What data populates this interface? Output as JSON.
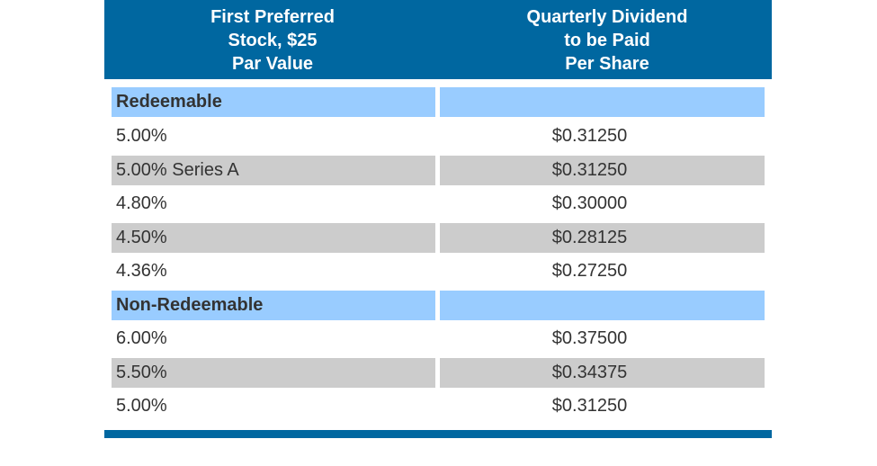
{
  "header": {
    "columns": [
      [
        "First Preferred",
        "Stock, $25",
        "Par Value"
      ],
      [
        "Quarterly Dividend",
        "to be Paid",
        "Per Share"
      ]
    ]
  },
  "table": {
    "sections": [
      {
        "title": "Redeemable",
        "rows": [
          [
            "5.00%",
            "$0.31250"
          ],
          [
            "5.00% Series A",
            "$0.31250"
          ],
          [
            "4.80%",
            "$0.30000"
          ],
          [
            "4.50%",
            "$0.28125"
          ],
          [
            "4.36%",
            "$0.27250"
          ]
        ]
      },
      {
        "title": "Non-Redeemable",
        "rows": [
          [
            "6.00%",
            "$0.37500"
          ],
          [
            "5.50%",
            "$0.34375"
          ],
          [
            "5.00%",
            "$0.31250"
          ]
        ]
      }
    ]
  }
}
